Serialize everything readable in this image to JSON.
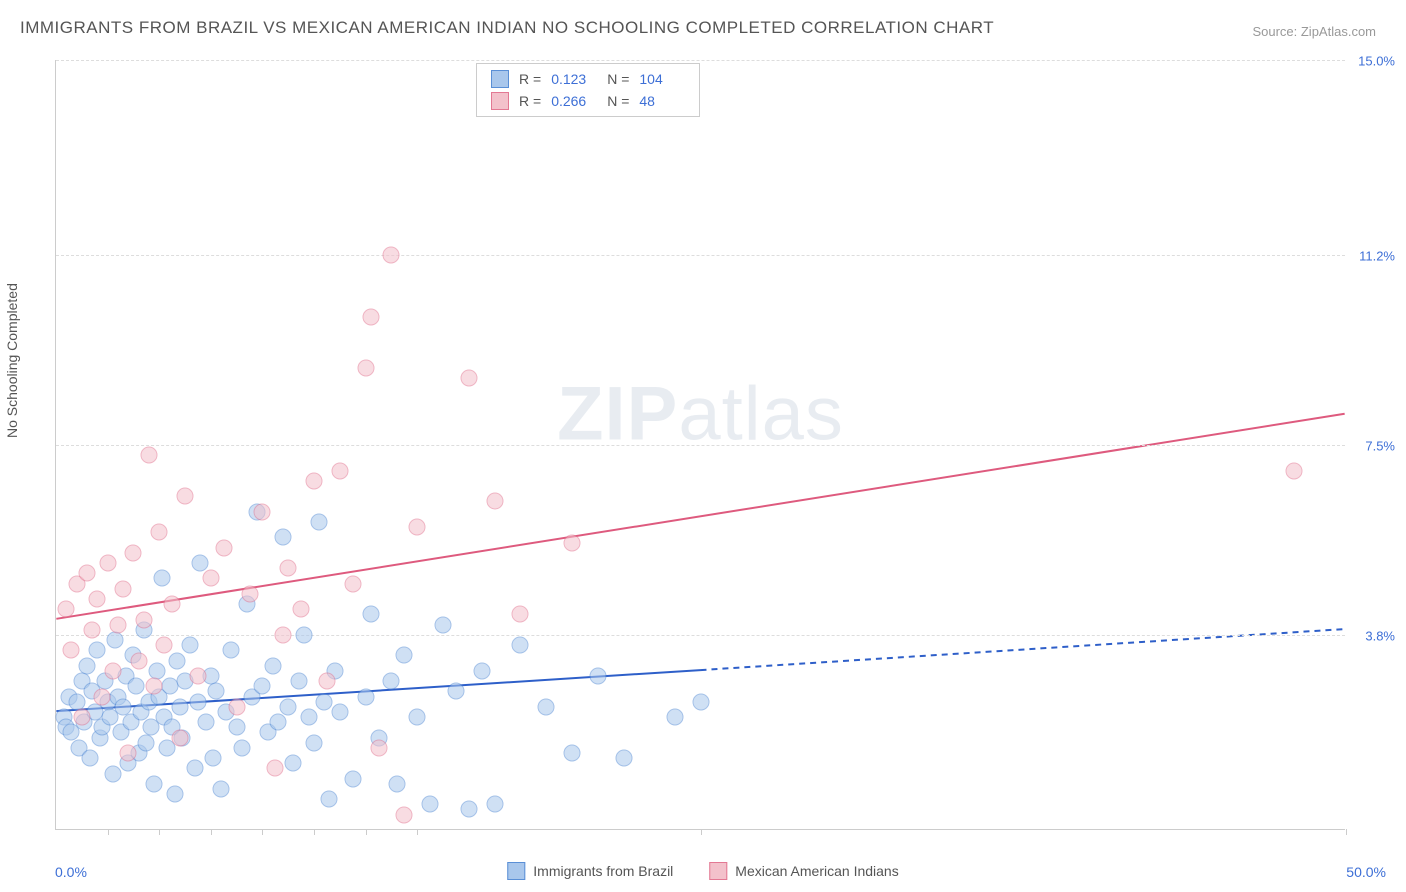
{
  "title": "IMMIGRANTS FROM BRAZIL VS MEXICAN AMERICAN INDIAN NO SCHOOLING COMPLETED CORRELATION CHART",
  "source": "Source: ZipAtlas.com",
  "watermark": "ZIPatlas",
  "yaxis_title": "No Schooling Completed",
  "plot": {
    "type": "scatter",
    "xlim": [
      0,
      50
    ],
    "ylim": [
      0,
      15
    ],
    "x_label_min": "0.0%",
    "x_label_max": "50.0%",
    "y_gridlines": [
      3.8,
      7.5,
      11.2,
      15.0
    ],
    "x_ticks": [
      2,
      4,
      6,
      8,
      10,
      12,
      14,
      25,
      50
    ],
    "background_color": "#ffffff",
    "grid_color": "#dddddd",
    "grid_dash": "4,4",
    "marker_radius": 8.5,
    "marker_opacity": 0.55
  },
  "series": [
    {
      "id": "brazil",
      "label": "Immigrants from Brazil",
      "fill": "#a9c7ec",
      "stroke": "#5a8fd6",
      "R": "0.123",
      "N": "104",
      "trend": {
        "x1": 0,
        "y1": 2.3,
        "x2": 25,
        "y2": 3.0,
        "solid_until": 25,
        "x3": 50,
        "y3": 3.9,
        "color": "#2e5fc9",
        "width": 2
      },
      "points": [
        [
          0.3,
          2.2
        ],
        [
          0.4,
          2.0
        ],
        [
          0.5,
          2.6
        ],
        [
          0.6,
          1.9
        ],
        [
          0.8,
          2.5
        ],
        [
          0.9,
          1.6
        ],
        [
          1.0,
          2.9
        ],
        [
          1.1,
          2.1
        ],
        [
          1.2,
          3.2
        ],
        [
          1.3,
          1.4
        ],
        [
          1.4,
          2.7
        ],
        [
          1.5,
          2.3
        ],
        [
          1.6,
          3.5
        ],
        [
          1.7,
          1.8
        ],
        [
          1.8,
          2.0
        ],
        [
          1.9,
          2.9
        ],
        [
          2.0,
          2.5
        ],
        [
          2.1,
          2.2
        ],
        [
          2.2,
          1.1
        ],
        [
          2.3,
          3.7
        ],
        [
          2.4,
          2.6
        ],
        [
          2.5,
          1.9
        ],
        [
          2.6,
          2.4
        ],
        [
          2.7,
          3.0
        ],
        [
          2.8,
          1.3
        ],
        [
          2.9,
          2.1
        ],
        [
          3.0,
          3.4
        ],
        [
          3.1,
          2.8
        ],
        [
          3.2,
          1.5
        ],
        [
          3.3,
          2.3
        ],
        [
          3.4,
          3.9
        ],
        [
          3.5,
          1.7
        ],
        [
          3.6,
          2.5
        ],
        [
          3.7,
          2.0
        ],
        [
          3.8,
          0.9
        ],
        [
          3.9,
          3.1
        ],
        [
          4.0,
          2.6
        ],
        [
          4.1,
          4.9
        ],
        [
          4.2,
          2.2
        ],
        [
          4.3,
          1.6
        ],
        [
          4.4,
          2.8
        ],
        [
          4.5,
          2.0
        ],
        [
          4.6,
          0.7
        ],
        [
          4.7,
          3.3
        ],
        [
          4.8,
          2.4
        ],
        [
          4.9,
          1.8
        ],
        [
          5.0,
          2.9
        ],
        [
          5.2,
          3.6
        ],
        [
          5.4,
          1.2
        ],
        [
          5.5,
          2.5
        ],
        [
          5.6,
          5.2
        ],
        [
          5.8,
          2.1
        ],
        [
          6.0,
          3.0
        ],
        [
          6.1,
          1.4
        ],
        [
          6.2,
          2.7
        ],
        [
          6.4,
          0.8
        ],
        [
          6.6,
          2.3
        ],
        [
          6.8,
          3.5
        ],
        [
          7.0,
          2.0
        ],
        [
          7.2,
          1.6
        ],
        [
          7.4,
          4.4
        ],
        [
          7.6,
          2.6
        ],
        [
          7.8,
          6.2
        ],
        [
          8.0,
          2.8
        ],
        [
          8.2,
          1.9
        ],
        [
          8.4,
          3.2
        ],
        [
          8.6,
          2.1
        ],
        [
          8.8,
          5.7
        ],
        [
          9.0,
          2.4
        ],
        [
          9.2,
          1.3
        ],
        [
          9.4,
          2.9
        ],
        [
          9.6,
          3.8
        ],
        [
          9.8,
          2.2
        ],
        [
          10.0,
          1.7
        ],
        [
          10.2,
          6.0
        ],
        [
          10.4,
          2.5
        ],
        [
          10.6,
          0.6
        ],
        [
          10.8,
          3.1
        ],
        [
          11.0,
          2.3
        ],
        [
          11.5,
          1.0
        ],
        [
          12.0,
          2.6
        ],
        [
          12.2,
          4.2
        ],
        [
          12.5,
          1.8
        ],
        [
          13.0,
          2.9
        ],
        [
          13.2,
          0.9
        ],
        [
          13.5,
          3.4
        ],
        [
          14.0,
          2.2
        ],
        [
          14.5,
          0.5
        ],
        [
          15.0,
          4.0
        ],
        [
          15.5,
          2.7
        ],
        [
          16.0,
          0.4
        ],
        [
          16.5,
          3.1
        ],
        [
          17.0,
          0.5
        ],
        [
          18.0,
          3.6
        ],
        [
          19.0,
          2.4
        ],
        [
          20.0,
          1.5
        ],
        [
          21.0,
          3.0
        ],
        [
          22.0,
          1.4
        ],
        [
          24.0,
          2.2
        ],
        [
          25.0,
          2.5
        ]
      ]
    },
    {
      "id": "mexican",
      "label": "Mexican American Indians",
      "fill": "#f3c1cb",
      "stroke": "#e37893",
      "R": "0.266",
      "N": "48",
      "trend": {
        "x1": 0,
        "y1": 4.1,
        "x2": 50,
        "y2": 8.1,
        "solid_until": 50,
        "color": "#de5a7e",
        "width": 2
      },
      "points": [
        [
          0.4,
          4.3
        ],
        [
          0.6,
          3.5
        ],
        [
          0.8,
          4.8
        ],
        [
          1.0,
          2.2
        ],
        [
          1.2,
          5.0
        ],
        [
          1.4,
          3.9
        ],
        [
          1.6,
          4.5
        ],
        [
          1.8,
          2.6
        ],
        [
          2.0,
          5.2
        ],
        [
          2.2,
          3.1
        ],
        [
          2.4,
          4.0
        ],
        [
          2.6,
          4.7
        ],
        [
          2.8,
          1.5
        ],
        [
          3.0,
          5.4
        ],
        [
          3.2,
          3.3
        ],
        [
          3.4,
          4.1
        ],
        [
          3.6,
          7.3
        ],
        [
          3.8,
          2.8
        ],
        [
          4.0,
          5.8
        ],
        [
          4.2,
          3.6
        ],
        [
          4.5,
          4.4
        ],
        [
          4.8,
          1.8
        ],
        [
          5.0,
          6.5
        ],
        [
          5.5,
          3.0
        ],
        [
          6.0,
          4.9
        ],
        [
          6.5,
          5.5
        ],
        [
          7.0,
          2.4
        ],
        [
          7.5,
          4.6
        ],
        [
          8.0,
          6.2
        ],
        [
          8.5,
          1.2
        ],
        [
          8.8,
          3.8
        ],
        [
          9.0,
          5.1
        ],
        [
          9.5,
          4.3
        ],
        [
          10.0,
          6.8
        ],
        [
          10.5,
          2.9
        ],
        [
          11.0,
          7.0
        ],
        [
          11.5,
          4.8
        ],
        [
          12.0,
          9.0
        ],
        [
          12.2,
          10.0
        ],
        [
          12.5,
          1.6
        ],
        [
          13.0,
          11.2
        ],
        [
          13.5,
          0.3
        ],
        [
          14.0,
          5.9
        ],
        [
          16.0,
          8.8
        ],
        [
          17.0,
          6.4
        ],
        [
          18.0,
          4.2
        ],
        [
          20.0,
          5.6
        ],
        [
          48.0,
          7.0
        ]
      ]
    }
  ]
}
